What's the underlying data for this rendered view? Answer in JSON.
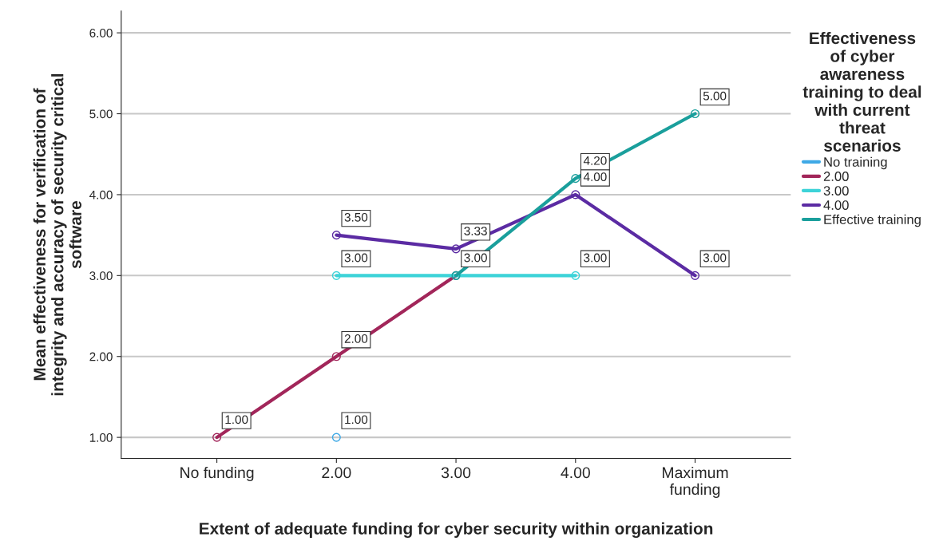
{
  "chart_data": {
    "type": "line",
    "xlabel": "Extent of adequate funding for cyber security within organization",
    "ylabel": "Mean effectiveness for verification of\nintegrity and accuracy of security critical\nsoftware",
    "legend_title": "Effectiveness\nof cyber\nawareness\ntraining to deal\nwith current\nthreat\nscenarios",
    "categories": [
      "No funding",
      "2.00",
      "3.00",
      "4.00",
      "Maximum\nfunding"
    ],
    "series": [
      {
        "name": "No training",
        "color": "#3fa9e6",
        "values": [
          null,
          1.0,
          null,
          null,
          null
        ],
        "value_labels": [
          null,
          "1.00",
          null,
          null,
          null
        ]
      },
      {
        "name": "2.00",
        "color": "#a2265a",
        "values": [
          1.0,
          2.0,
          3.0,
          null,
          null
        ],
        "value_labels": [
          "1.00",
          "2.00",
          "3.00",
          null,
          null
        ]
      },
      {
        "name": "3.00",
        "color": "#3dd3d8",
        "values": [
          null,
          3.0,
          3.0,
          3.0,
          null
        ],
        "value_labels": [
          null,
          "3.00",
          null,
          "3.00",
          null
        ]
      },
      {
        "name": "4.00",
        "color": "#5b2ba3",
        "values": [
          null,
          3.5,
          3.33,
          4.0,
          3.0
        ],
        "value_labels": [
          null,
          "3.50",
          "3.33",
          "4.00",
          "3.00"
        ]
      },
      {
        "name": "Effective training",
        "color": "#1a9f9c",
        "values": [
          null,
          null,
          3.0,
          4.2,
          5.0
        ],
        "value_labels": [
          null,
          null,
          null,
          "4.20",
          "5.00"
        ]
      }
    ],
    "ylim": [
      0.74,
      6.27
    ],
    "yticks": [
      {
        "value": 1,
        "label": "1.00"
      },
      {
        "value": 2,
        "label": "2.00"
      },
      {
        "value": 3,
        "label": "3.00"
      },
      {
        "value": 4,
        "label": "4.00"
      },
      {
        "value": 5,
        "label": "5.00"
      },
      {
        "value": 6,
        "label": "6.00"
      }
    ],
    "grid": "y",
    "legend": "right",
    "marker": "circle",
    "line_style": "solid"
  }
}
